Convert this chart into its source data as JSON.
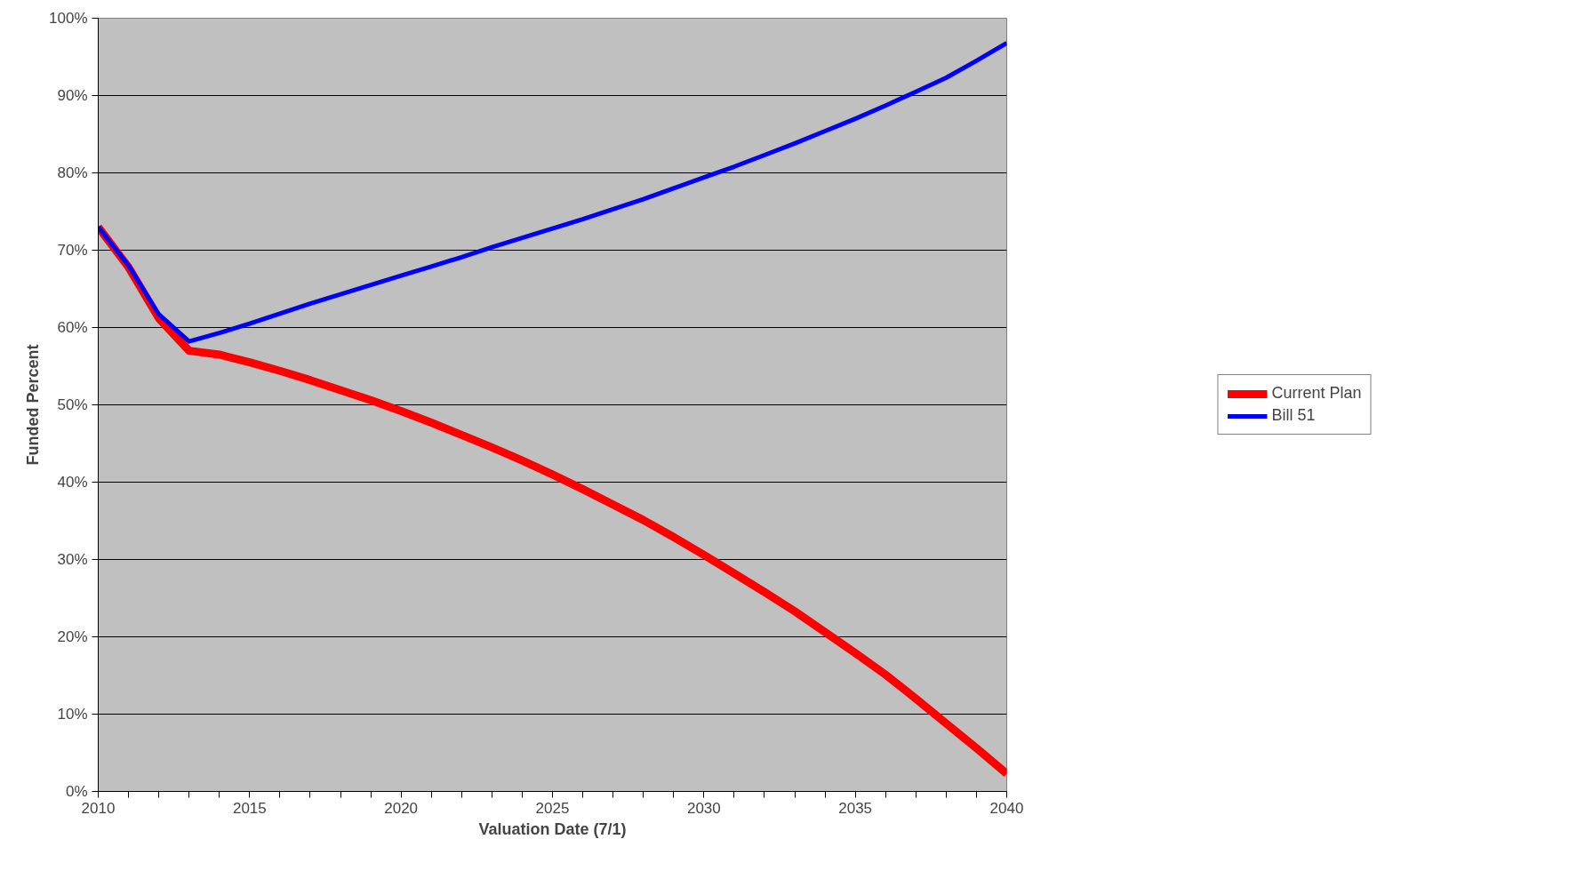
{
  "chart_data": {
    "type": "line",
    "xlabel": "Valuation Date (7/1)",
    "ylabel": "Funded Percent",
    "x": [
      2010,
      2011,
      2012,
      2013,
      2014,
      2015,
      2016,
      2017,
      2018,
      2019,
      2020,
      2021,
      2022,
      2023,
      2024,
      2025,
      2026,
      2027,
      2028,
      2029,
      2030,
      2031,
      2032,
      2033,
      2034,
      2035,
      2036,
      2037,
      2038,
      2039,
      2040
    ],
    "series": [
      {
        "name": "Current Plan",
        "color": "#ff0000",
        "values": [
          73,
          67.8,
          61.2,
          57.0,
          56.5,
          55.5,
          54.4,
          53.2,
          51.9,
          50.6,
          49.2,
          47.7,
          46.1,
          44.5,
          42.8,
          41.0,
          39.1,
          37.1,
          35.1,
          32.9,
          30.6,
          28.2,
          25.8,
          23.3,
          20.6,
          17.9,
          15.1,
          12.0,
          8.8,
          5.6,
          2.3
        ]
      },
      {
        "name": "Bill 51",
        "color": "#0000ff",
        "values": [
          73,
          68,
          61.7,
          58.2,
          59.3,
          60.5,
          61.8,
          63.1,
          64.3,
          65.5,
          66.7,
          67.9,
          69.1,
          70.4,
          71.6,
          72.8,
          74.0,
          75.3,
          76.6,
          78.0,
          79.4,
          80.8,
          82.3,
          83.8,
          85.4,
          87.0,
          88.7,
          90.5,
          92.3,
          94.5,
          96.8
        ]
      }
    ],
    "xlim": [
      2010,
      2040
    ],
    "xticks": [
      2010,
      {
        "value": 2011,
        "label": null
      },
      {
        "value": 2012,
        "label": null
      },
      {
        "value": 2013,
        "label": null
      },
      {
        "value": 2014,
        "label": null
      },
      2015,
      {
        "value": 2016,
        "label": null
      },
      {
        "value": 2017,
        "label": null
      },
      {
        "value": 2018,
        "label": null
      },
      {
        "value": 2019,
        "label": null
      },
      2020,
      {
        "value": 2021,
        "label": null
      },
      {
        "value": 2022,
        "label": null
      },
      {
        "value": 2023,
        "label": null
      },
      {
        "value": 2024,
        "label": null
      },
      2025,
      {
        "value": 2026,
        "label": null
      },
      {
        "value": 2027,
        "label": null
      },
      {
        "value": 2028,
        "label": null
      },
      {
        "value": 2029,
        "label": null
      },
      2030,
      {
        "value": 2031,
        "label": null
      },
      {
        "value": 2032,
        "label": null
      },
      {
        "value": 2033,
        "label": null
      },
      {
        "value": 2034,
        "label": null
      },
      2035,
      {
        "value": 2036,
        "label": null
      },
      {
        "value": 2037,
        "label": null
      },
      {
        "value": 2038,
        "label": null
      },
      {
        "value": 2039,
        "label": null
      },
      2040
    ],
    "ylim": [
      0,
      100
    ],
    "yticks": [
      {
        "value": 0,
        "label": "0%"
      },
      {
        "value": 10,
        "label": "10%"
      },
      {
        "value": 20,
        "label": "20%"
      },
      {
        "value": 30,
        "label": "30%"
      },
      {
        "value": 40,
        "label": "40%"
      },
      {
        "value": 50,
        "label": "50%"
      },
      {
        "value": 60,
        "label": "60%"
      },
      {
        "value": 70,
        "label": "70%"
      },
      {
        "value": 80,
        "label": "80%"
      },
      {
        "value": 90,
        "label": "90%"
      },
      {
        "value": 100,
        "label": "100%"
      }
    ],
    "grid": "y",
    "legend": "right",
    "marker": "none",
    "line_style": "solid"
  }
}
